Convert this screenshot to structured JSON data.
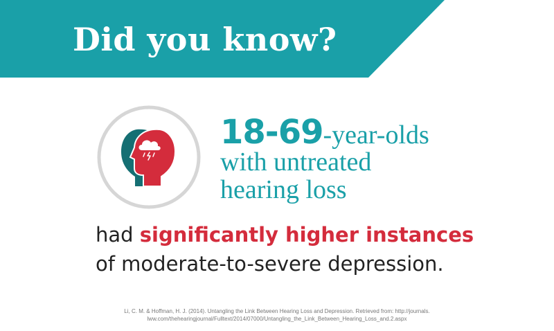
{
  "banner": {
    "title": "Did you know?",
    "color": "#1aa0a8"
  },
  "icon": {
    "name": "two-heads-storm-cloud-icon",
    "ring_color": "#d6d6d6",
    "head_back_color": "#156f73",
    "head_front_color": "#d42c3c",
    "cloud_color": "#ffffff"
  },
  "headline": {
    "age_range": "18-69",
    "age_suffix": "-year-olds",
    "line2": "with untreated",
    "line3": "hearing loss",
    "color": "#1aa0a8"
  },
  "body": {
    "prefix": "had ",
    "emphasis": "significantly higher instances",
    "line2": "of moderate-to-severe depression.",
    "emphasis_color": "#d42c3c"
  },
  "citation": {
    "line1": "Li, C. M. & Hoffman, H. J. (2014). Untangling the Link Between Hearing Loss and Depression. Retrieved from: http://journals.",
    "line2": "lww.com/thehearingjournal/Fulltext/2014/07000/Untangling_the_Link_Between_Hearing_Loss_and.2.aspx"
  }
}
